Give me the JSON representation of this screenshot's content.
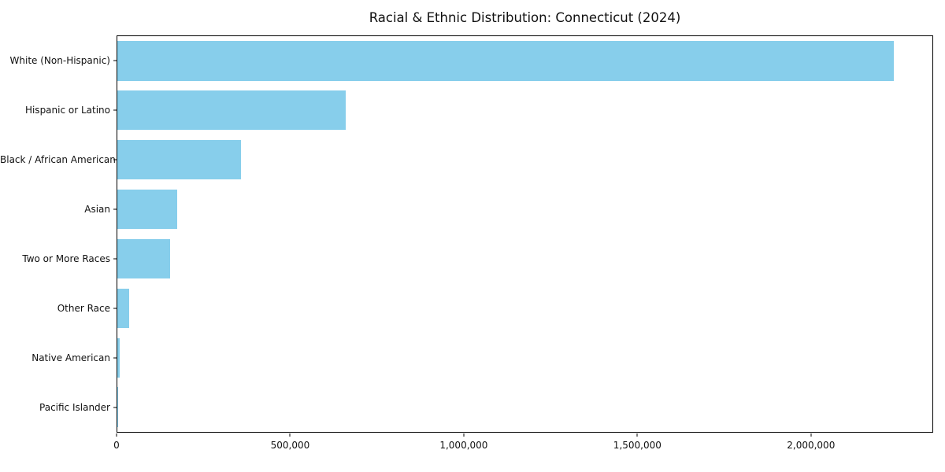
{
  "chart_data": {
    "type": "bar",
    "orientation": "horizontal",
    "title": "Racial & Ethnic Distribution: Connecticut (2024)",
    "categories": [
      "White (Non-Hispanic)",
      "Hispanic or Latino",
      "Black / African American",
      "Asian",
      "Two or More Races",
      "Other Race",
      "Native American",
      "Pacific Islander"
    ],
    "values": [
      2240000,
      660000,
      357000,
      172000,
      153000,
      34000,
      6000,
      1500
    ],
    "bar_color": "#87CEEB",
    "xlabel": "",
    "ylabel": "",
    "xlim": [
      0,
      2352000
    ],
    "x_ticks": [
      0,
      500000,
      1000000,
      1500000,
      2000000
    ],
    "x_tick_labels": [
      "0",
      "500,000",
      "1,000,000",
      "1,500,000",
      "2,000,000"
    ],
    "grid": false,
    "legend": "none"
  }
}
